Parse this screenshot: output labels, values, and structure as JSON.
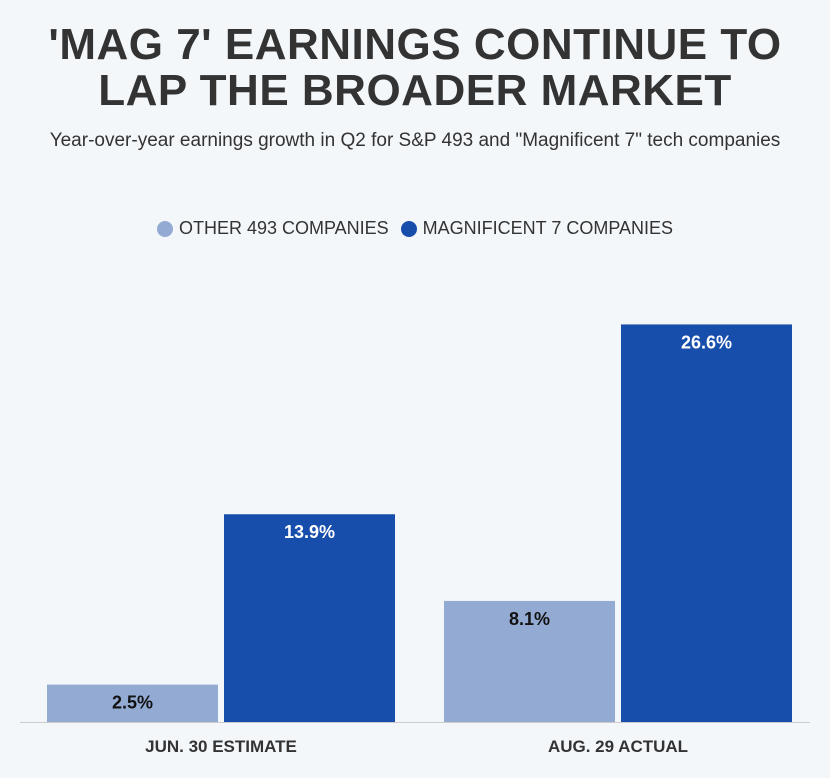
{
  "chart_data": {
    "type": "bar",
    "title_lines": [
      "'MAG 7' EARNINGS CONTINUE TO",
      "LAP THE BROADER MARKET"
    ],
    "subtitle": "Year-over-year earnings growth in Q2 for S&P 493 and \"Magnificent 7\" tech companies",
    "categories": [
      "JUN. 30 ESTIMATE",
      "AUG. 29 ACTUAL"
    ],
    "series": [
      {
        "name": "OTHER 493 COMPANIES",
        "values": [
          2.5,
          8.1
        ],
        "labels": [
          "2.5%",
          "8.1%"
        ],
        "color": "#93aad3",
        "label_color": "#111111"
      },
      {
        "name": "MAGNIFICENT 7 COMPANIES",
        "values": [
          13.9,
          26.6
        ],
        "labels": [
          "13.9%",
          "26.6%"
        ],
        "color": "#174eab",
        "label_color": "#ffffff"
      }
    ],
    "ylim": [
      0,
      27.9
    ],
    "legend_position": "top-center",
    "grid": false
  }
}
